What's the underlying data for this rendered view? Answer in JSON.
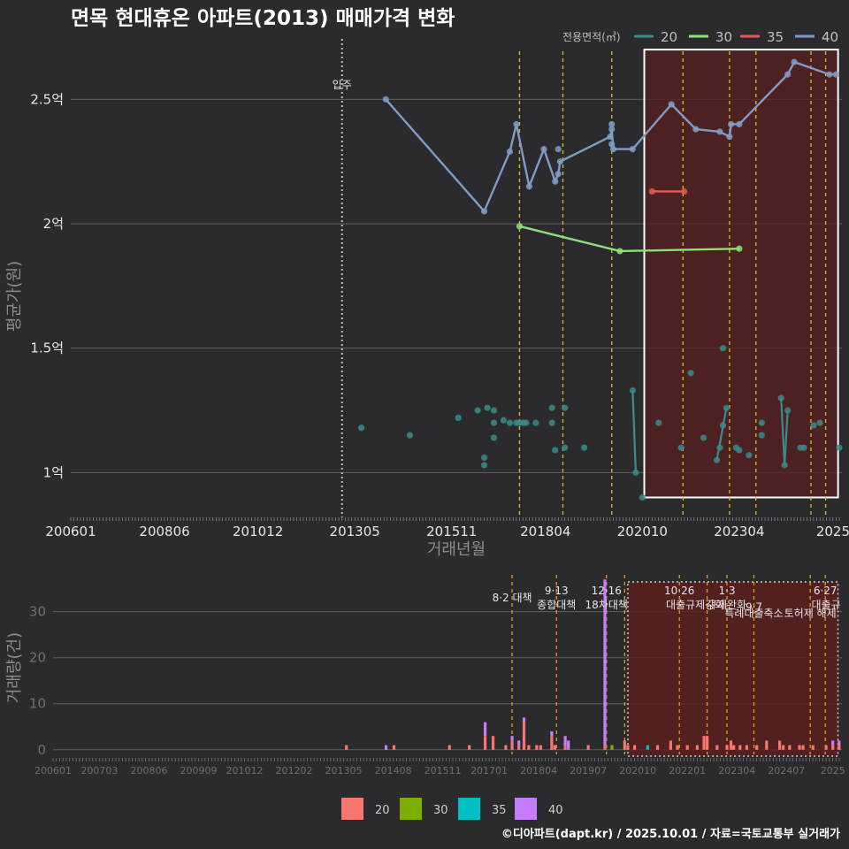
{
  "title": "면목 현대휴온 아파트(2013) 매매가격 변화",
  "footer": "©디아파트(dapt.kr) / 2025.10.01 / 자료=국토교통부 실거래가",
  "colors": {
    "s20": "#3a8c8c",
    "s30": "#8fe07a",
    "s35": "#e05a55",
    "s40": "#7f9cc6",
    "b20": "#f8766d",
    "b30": "#7cae00",
    "b35": "#00bfc4",
    "b40": "#c77cff",
    "vline": "#d4c21f",
    "vline_bottom": "#e59a1a",
    "grid": "#5e5e5e",
    "shade": "#5a1e1e",
    "box": "#ffffff"
  },
  "chart_data": [
    {
      "type": "line",
      "title": "면목 현대휴온 아파트(2013) 매매가격 변화",
      "xlabel": "거래년월",
      "ylabel": "평균가(원)",
      "xlim": [
        2006.0,
        2025.9
      ],
      "ylim": [
        0.82,
        2.75
      ],
      "x_ticks": [
        {
          "x": 2006.0,
          "label": "200601"
        },
        {
          "x": 2008.42,
          "label": "200806"
        },
        {
          "x": 2010.83,
          "label": "201012"
        },
        {
          "x": 2013.33,
          "label": "201305"
        },
        {
          "x": 2015.83,
          "label": "201511"
        },
        {
          "x": 2018.25,
          "label": "201804"
        },
        {
          "x": 2020.75,
          "label": "202010"
        },
        {
          "x": 2023.25,
          "label": "202304"
        },
        {
          "x": 2025.67,
          "label": "2025"
        }
      ],
      "y_ticks": [
        {
          "y": 1.0,
          "label": "1억"
        },
        {
          "y": 1.5,
          "label": "1.5억"
        },
        {
          "y": 2.0,
          "label": "2억"
        },
        {
          "y": 2.5,
          "label": "2.5억"
        }
      ],
      "legend_title": "전용면적(㎡)",
      "legend": [
        {
          "name": "20",
          "key": "s20"
        },
        {
          "name": "30",
          "key": "s30"
        },
        {
          "name": "35",
          "key": "s35"
        },
        {
          "name": "40",
          "key": "s40"
        }
      ],
      "annotation": {
        "x": 2013.0,
        "label": "입주"
      },
      "policy_lines": [
        2017.58,
        2018.7,
        2019.96,
        2021.8,
        2023.0,
        2023.68,
        2025.1,
        2025.48
      ],
      "highlight": {
        "x0": 2020.8,
        "x1": 2025.8,
        "y0": 0.9,
        "y1": 2.7
      },
      "series": [
        {
          "name": "40",
          "key": "s40",
          "lines": true,
          "points": [
            [
              2014.13,
              2.5
            ],
            [
              2016.67,
              2.05
            ],
            [
              2017.33,
              2.29
            ],
            [
              2017.5,
              2.4
            ],
            [
              2017.83,
              2.15
            ],
            [
              2018.21,
              2.3
            ],
            [
              2018.5,
              2.17
            ],
            [
              2018.58,
              2.2
            ],
            [
              2018.63,
              2.25
            ],
            [
              2019.92,
              2.35
            ],
            [
              2019.96,
              2.38
            ],
            [
              2020.0,
              2.3
            ],
            [
              2020.5,
              2.3
            ],
            [
              2021.5,
              2.48
            ],
            [
              2022.13,
              2.38
            ],
            [
              2022.75,
              2.37
            ],
            [
              2023.0,
              2.35
            ],
            [
              2023.04,
              2.4
            ],
            [
              2023.25,
              2.4
            ],
            [
              2024.5,
              2.6
            ],
            [
              2024.67,
              2.65
            ],
            [
              2025.58,
              2.6
            ],
            [
              2025.75,
              2.6
            ]
          ],
          "extra": [
            [
              2018.58,
              2.3
            ],
            [
              2019.96,
              2.32
            ],
            [
              2019.96,
              2.4
            ]
          ]
        },
        {
          "name": "30",
          "key": "s30",
          "lines": true,
          "points": [
            [
              2017.58,
              1.99
            ],
            [
              2020.17,
              1.89
            ],
            [
              2023.25,
              1.9
            ]
          ]
        },
        {
          "name": "35",
          "key": "s35",
          "lines": true,
          "points": [
            [
              2021.0,
              2.13
            ],
            [
              2021.83,
              2.13
            ]
          ]
        },
        {
          "name": "20",
          "key": "s20",
          "lines": false,
          "points": [
            [
              2013.5,
              1.18
            ],
            [
              2014.75,
              1.15
            ],
            [
              2016.0,
              1.22
            ],
            [
              2016.5,
              1.25
            ],
            [
              2016.67,
              1.06
            ],
            [
              2016.67,
              1.03
            ],
            [
              2016.75,
              1.26
            ],
            [
              2016.92,
              1.25
            ],
            [
              2016.92,
              1.2
            ],
            [
              2016.92,
              1.14
            ],
            [
              2017.17,
              1.21
            ],
            [
              2017.33,
              1.2
            ],
            [
              2017.5,
              1.2
            ],
            [
              2017.58,
              1.2
            ],
            [
              2017.67,
              1.2
            ],
            [
              2017.75,
              1.2
            ],
            [
              2018.0,
              1.2
            ],
            [
              2018.42,
              1.26
            ],
            [
              2018.42,
              1.2
            ],
            [
              2018.5,
              1.09
            ],
            [
              2018.75,
              1.26
            ],
            [
              2018.75,
              1.1
            ],
            [
              2019.25,
              1.1
            ],
            [
              2020.5,
              1.33
            ],
            [
              2020.58,
              1.0
            ],
            [
              2020.75,
              0.9
            ],
            [
              2021.17,
              1.2
            ],
            [
              2021.75,
              1.1
            ],
            [
              2022.0,
              1.4
            ],
            [
              2022.33,
              1.14
            ],
            [
              2022.83,
              1.5
            ],
            [
              2022.67,
              1.05
            ],
            [
              2022.75,
              1.1
            ],
            [
              2022.83,
              1.19
            ],
            [
              2022.92,
              1.26
            ],
            [
              2023.17,
              1.1
            ],
            [
              2023.25,
              1.09
            ],
            [
              2023.5,
              1.07
            ],
            [
              2023.83,
              1.2
            ],
            [
              2023.83,
              1.15
            ],
            [
              2024.33,
              1.3
            ],
            [
              2024.42,
              1.03
            ],
            [
              2024.5,
              1.25
            ],
            [
              2024.83,
              1.1
            ],
            [
              2024.92,
              1.1
            ],
            [
              2025.17,
              1.19
            ],
            [
              2025.33,
              1.2
            ],
            [
              2025.83,
              1.1
            ]
          ],
          "segments": [
            [
              [
                2020.5,
                1.33
              ],
              [
                2020.58,
                1.0
              ]
            ],
            [
              [
                2022.67,
                1.05
              ],
              [
                2022.92,
                1.26
              ]
            ],
            [
              [
                2024.33,
                1.3
              ],
              [
                2024.42,
                1.03
              ]
            ],
            [
              [
                2024.42,
                1.03
              ],
              [
                2024.5,
                1.25
              ]
            ]
          ]
        }
      ]
    },
    {
      "type": "bar",
      "ylabel": "거래량(건)",
      "xlim": [
        2006.0,
        2025.9
      ],
      "ylim": [
        -1,
        38
      ],
      "y_ticks": [
        {
          "y": 0,
          "label": "0"
        },
        {
          "y": 10,
          "label": "10"
        },
        {
          "y": 20,
          "label": "20"
        },
        {
          "y": 30,
          "label": "30"
        }
      ],
      "x_ticks": [
        {
          "x": 2006.0,
          "label": "200601"
        },
        {
          "x": 2007.17,
          "label": "200703"
        },
        {
          "x": 2008.42,
          "label": "200806"
        },
        {
          "x": 2009.67,
          "label": "200909"
        },
        {
          "x": 2010.83,
          "label": "201012"
        },
        {
          "x": 2012.08,
          "label": "201202"
        },
        {
          "x": 2013.33,
          "label": "201305"
        },
        {
          "x": 2014.58,
          "label": "201408"
        },
        {
          "x": 2015.83,
          "label": "201511"
        },
        {
          "x": 2017.0,
          "label": "201701"
        },
        {
          "x": 2018.25,
          "label": "201804"
        },
        {
          "x": 2019.5,
          "label": "201907"
        },
        {
          "x": 2020.75,
          "label": "202010"
        },
        {
          "x": 2022.0,
          "label": "202201"
        },
        {
          "x": 2023.25,
          "label": "202304"
        },
        {
          "x": 2024.5,
          "label": "202407"
        },
        {
          "x": 2025.67,
          "label": "2025"
        }
      ],
      "policy_lines": [
        2017.58,
        2018.7,
        2019.96,
        2020.42,
        2021.8,
        2022.5,
        2023.0,
        2023.68,
        2025.1,
        2025.48
      ],
      "highlight": {
        "x0": 2020.5,
        "x1": 2025.8
      },
      "annotations": [
        {
          "x": 2017.58,
          "row": 1,
          "label": "8·2 대책"
        },
        {
          "x": 2018.7,
          "row": 0,
          "label": "9·13"
        },
        {
          "x": 2018.7,
          "row": 2,
          "label": "종합대책"
        },
        {
          "x": 2019.96,
          "row": 0,
          "label": "12·16"
        },
        {
          "x": 2019.96,
          "row": 2,
          "label": "18차대책"
        },
        {
          "x": 2021.8,
          "row": 0,
          "label": "10·26"
        },
        {
          "x": 2022.2,
          "row": 2,
          "label": "대출규제강화"
        },
        {
          "x": 2023.0,
          "row": 0,
          "label": "1·3"
        },
        {
          "x": 2023.0,
          "row": 2,
          "label": "규제완화"
        },
        {
          "x": 2023.68,
          "row": 2.3,
          "label": "9·7"
        },
        {
          "x": 2023.68,
          "row": 3.2,
          "label": "특례대출축소"
        },
        {
          "x": 2025.1,
          "row": 3.2,
          "label": "토허제 해제"
        },
        {
          "x": 2025.48,
          "row": 0,
          "label": "6·27"
        },
        {
          "x": 2025.5,
          "row": 2,
          "label": "대출규"
        }
      ],
      "legend": [
        {
          "name": "20",
          "key": "b20"
        },
        {
          "name": "30",
          "key": "b30"
        },
        {
          "name": "35",
          "key": "b35"
        },
        {
          "name": "40",
          "key": "b40"
        }
      ],
      "bars": [
        {
          "x": 2013.4,
          "s20": 1
        },
        {
          "x": 2014.4,
          "s40": 1
        },
        {
          "x": 2014.6,
          "s20": 1
        },
        {
          "x": 2016.0,
          "s20": 1
        },
        {
          "x": 2016.5,
          "s20": 1
        },
        {
          "x": 2016.9,
          "s20": 3,
          "s40": 3
        },
        {
          "x": 2017.1,
          "s20": 3
        },
        {
          "x": 2017.42,
          "s20": 1
        },
        {
          "x": 2017.58,
          "s20": 2,
          "s40": 1,
          "s30": 0
        },
        {
          "x": 2017.75,
          "s20": 1,
          "s40": 1
        },
        {
          "x": 2017.88,
          "s20": 6,
          "s40": 1
        },
        {
          "x": 2018.0,
          "s20": 1
        },
        {
          "x": 2018.2,
          "s20": 1
        },
        {
          "x": 2018.3,
          "s20": 1
        },
        {
          "x": 2018.58,
          "s20": 3,
          "s40": 1
        },
        {
          "x": 2018.66,
          "s20": 1
        },
        {
          "x": 2018.92,
          "s20": 1,
          "s40": 2
        },
        {
          "x": 2019.0,
          "s40": 2
        },
        {
          "x": 2019.5,
          "s20": 1
        },
        {
          "x": 2019.92,
          "s20": 1,
          "s40": 36
        },
        {
          "x": 2020.1,
          "s30": 1
        },
        {
          "x": 2020.42,
          "s20": 2
        },
        {
          "x": 2020.5,
          "s20": 1
        },
        {
          "x": 2020.67,
          "s20": 1
        },
        {
          "x": 2021.0,
          "s35": 1
        },
        {
          "x": 2021.25,
          "s20": 1
        },
        {
          "x": 2021.58,
          "s20": 2
        },
        {
          "x": 2021.75,
          "s20": 1
        },
        {
          "x": 2022.0,
          "s20": 1
        },
        {
          "x": 2022.25,
          "s20": 1
        },
        {
          "x": 2022.42,
          "s20": 3
        },
        {
          "x": 2022.5,
          "s20": 3
        },
        {
          "x": 2022.75,
          "s20": 1
        },
        {
          "x": 2023.0,
          "s20": 1
        },
        {
          "x": 2023.1,
          "s20": 2
        },
        {
          "x": 2023.17,
          "s20": 1
        },
        {
          "x": 2023.33,
          "s20": 1
        },
        {
          "x": 2023.5,
          "s20": 1
        },
        {
          "x": 2023.75,
          "s20": 1
        },
        {
          "x": 2024.0,
          "s20": 2
        },
        {
          "x": 2024.33,
          "s20": 2
        },
        {
          "x": 2024.42,
          "s20": 1
        },
        {
          "x": 2024.58,
          "s20": 1
        },
        {
          "x": 2024.83,
          "s20": 1
        },
        {
          "x": 2024.92,
          "s20": 1
        },
        {
          "x": 2025.17,
          "s20": 1
        },
        {
          "x": 2025.5,
          "s20": 1
        },
        {
          "x": 2025.67,
          "s20": 1,
          "s40": 1
        },
        {
          "x": 2025.83,
          "s20": 1,
          "s40": 1
        }
      ]
    }
  ]
}
